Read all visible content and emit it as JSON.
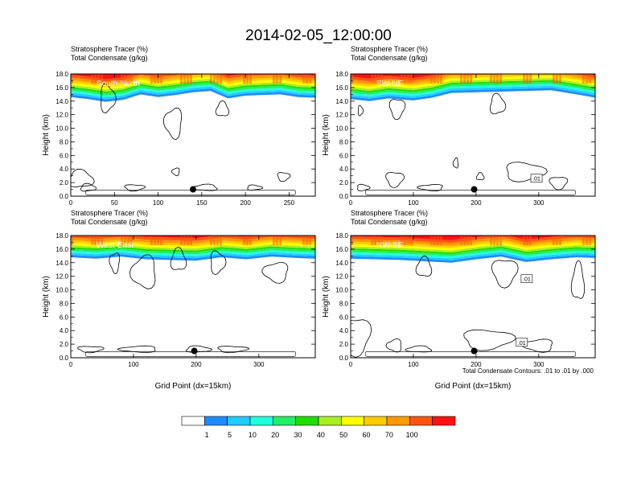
{
  "title": "2014-02-05_12:00:00",
  "panel_subtitle_lines": [
    "Stratosphere Tracer   (%)",
    "Total Condensate   (g/kg)"
  ],
  "ylabel": "Height (km)",
  "xlabel": "Grid Point (dx=15km)",
  "contour_note": "Total Condensate Contours: .01 to .01 by .000",
  "colorbar": {
    "colors": [
      "#ffffff",
      "#1e8cff",
      "#22ccff",
      "#22ffdd",
      "#22ee66",
      "#22dd00",
      "#aaee22",
      "#ffff00",
      "#ffcc00",
      "#ff9900",
      "#ff5511",
      "#ff1111"
    ],
    "labels": [
      "1",
      "5",
      "10",
      "20",
      "30",
      "40",
      "50",
      "60",
      "70",
      "100"
    ]
  },
  "chart_data": [
    {
      "type": "heatmap",
      "panel_label": "South-North",
      "title": "Stratosphere Tracer (%) / Total Condensate (g/kg)",
      "xlim": [
        0,
        280
      ],
      "ylim": [
        0,
        18
      ],
      "xticks": [
        0,
        50,
        100,
        150,
        200,
        250
      ],
      "yticks": [
        0.0,
        2.0,
        4.0,
        6.0,
        8.0,
        10.0,
        12.0,
        14.0,
        16.0,
        18.0
      ],
      "tracer_base_profile": [
        [
          0,
          14.6
        ],
        [
          20,
          14.3
        ],
        [
          40,
          13.9
        ],
        [
          60,
          14.2
        ],
        [
          80,
          15.0
        ],
        [
          100,
          14.6
        ],
        [
          120,
          14.9
        ],
        [
          140,
          15.3
        ],
        [
          160,
          15.5
        ],
        [
          180,
          14.4
        ],
        [
          200,
          14.8
        ],
        [
          220,
          14.9
        ],
        [
          240,
          15.0
        ],
        [
          260,
          14.6
        ],
        [
          280,
          14.5
        ]
      ],
      "marker": {
        "x": 140,
        "y": 1.0
      },
      "contour_labels": []
    },
    {
      "type": "heatmap",
      "panel_label": "SW-NE",
      "title": "Stratosphere Tracer (%) / Total Condensate (g/kg)",
      "xlim": [
        0,
        390
      ],
      "ylim": [
        0,
        18
      ],
      "xticks": [
        0,
        100,
        200,
        300
      ],
      "yticks": [
        0.0,
        2.0,
        4.0,
        6.0,
        8.0,
        10.0,
        12.0,
        14.0,
        16.0,
        18.0
      ],
      "tracer_base_profile": [
        [
          0,
          14.3
        ],
        [
          30,
          14.0
        ],
        [
          60,
          14.4
        ],
        [
          100,
          14.1
        ],
        [
          130,
          14.5
        ],
        [
          160,
          15.2
        ],
        [
          200,
          15.3
        ],
        [
          240,
          15.4
        ],
        [
          280,
          15.5
        ],
        [
          320,
          15.6
        ],
        [
          360,
          15.0
        ],
        [
          390,
          14.5
        ]
      ],
      "marker": {
        "x": 197,
        "y": 1.0
      },
      "contour_labels": [
        ".01"
      ]
    },
    {
      "type": "heatmap",
      "panel_label": "West-East",
      "title": "Stratosphere Tracer (%) / Total Condensate (g/kg)",
      "xlim": [
        0,
        390
      ],
      "ylim": [
        0,
        18
      ],
      "xticks": [
        0,
        100,
        200,
        300
      ],
      "yticks": [
        0.0,
        2.0,
        4.0,
        6.0,
        8.0,
        10.0,
        12.0,
        14.0,
        16.0,
        18.0
      ],
      "tracer_base_profile": [
        [
          0,
          14.8
        ],
        [
          40,
          14.6
        ],
        [
          80,
          14.9
        ],
        [
          120,
          14.5
        ],
        [
          160,
          14.4
        ],
        [
          200,
          14.3
        ],
        [
          240,
          14.8
        ],
        [
          280,
          14.5
        ],
        [
          320,
          14.9
        ],
        [
          360,
          14.7
        ],
        [
          390,
          14.6
        ]
      ],
      "marker": {
        "x": 197,
        "y": 1.0
      },
      "contour_labels": []
    },
    {
      "type": "heatmap",
      "panel_label": "NW-SE",
      "title": "Stratosphere Tracer (%) / Total Condensate (g/kg)",
      "xlim": [
        0,
        390
      ],
      "ylim": [
        0,
        18
      ],
      "xticks": [
        0,
        100,
        200,
        300
      ],
      "yticks": [
        0.0,
        2.0,
        4.0,
        6.0,
        8.0,
        10.0,
        12.0,
        14.0,
        16.0,
        18.0
      ],
      "tracer_base_profile": [
        [
          0,
          14.6
        ],
        [
          40,
          14.5
        ],
        [
          80,
          14.4
        ],
        [
          120,
          14.2
        ],
        [
          160,
          14.0
        ],
        [
          200,
          14.5
        ],
        [
          240,
          14.9
        ],
        [
          280,
          14.1
        ],
        [
          320,
          14.5
        ],
        [
          360,
          14.8
        ],
        [
          390,
          14.7
        ]
      ],
      "marker": {
        "x": 197,
        "y": 1.0
      },
      "contour_labels": [
        ".01",
        ".01"
      ]
    }
  ]
}
